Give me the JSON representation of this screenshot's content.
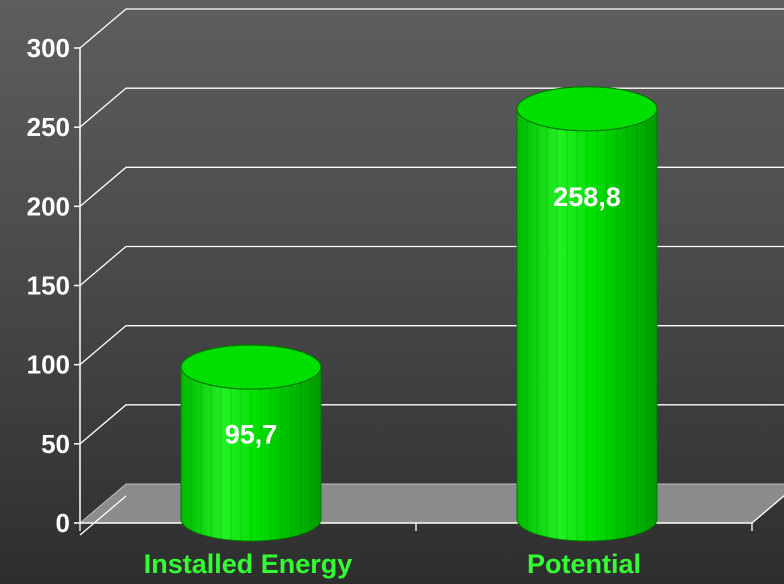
{
  "chart_data": {
    "type": "bar",
    "style": "3d-cylinder",
    "categories": [
      "Installed Energy",
      "Potential"
    ],
    "values": [
      95.7,
      258.8
    ],
    "data_labels": [
      "95,7",
      "258,8"
    ],
    "title": "",
    "xlabel": "",
    "ylabel": "",
    "ylim": [
      0,
      300
    ],
    "yticks": [
      0,
      50,
      100,
      150,
      200,
      250,
      300
    ],
    "grid": true,
    "legend": "none",
    "colors": {
      "bar": "#00e000",
      "bar_highlight": "#66ff33",
      "bar_shadow": "#00a000",
      "category_label": "#33ff33",
      "floor": "#8c8c8c",
      "gridline": "#ffffff",
      "background": "#4a4a4a"
    }
  }
}
